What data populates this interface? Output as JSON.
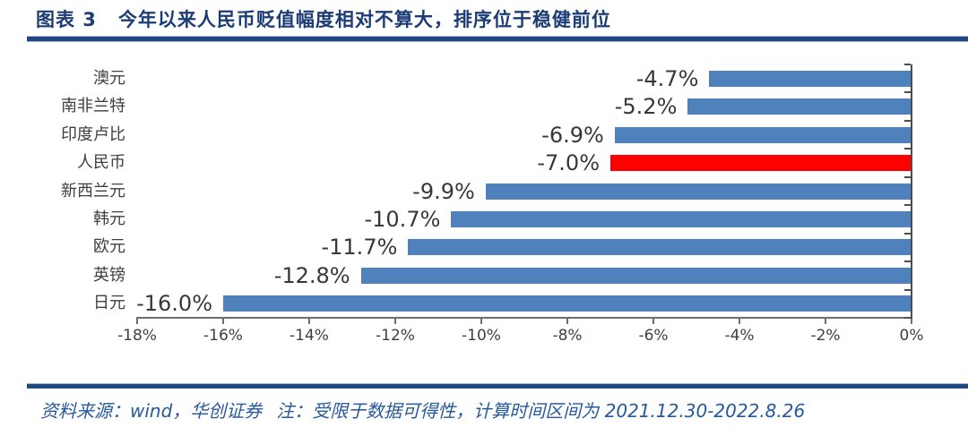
{
  "header": {
    "figure_label": "图表 3",
    "title": "今年以来人民币贬值幅度相对不算大，排序位于稳健前位"
  },
  "chart_data": {
    "type": "bar",
    "orientation": "horizontal",
    "title": "",
    "xlabel": "",
    "ylabel": "",
    "categories": [
      "澳元",
      "南非兰特",
      "印度卢比",
      "人民币",
      "新西兰元",
      "韩元",
      "欧元",
      "英镑",
      "日元"
    ],
    "values": [
      -4.7,
      -5.2,
      -6.9,
      -7.0,
      -9.9,
      -10.7,
      -11.7,
      -12.8,
      -16.0
    ],
    "value_labels": [
      "-4.7%",
      "-5.2%",
      "-6.9%",
      "-7.0%",
      "-9.9%",
      "-10.7%",
      "-11.7%",
      "-12.8%",
      "-16.0%"
    ],
    "highlight_category": "人民币",
    "bar_color": "#4F81BD",
    "highlight_color": "#FF0000",
    "xlim": [
      -18,
      0
    ],
    "x_ticks": [
      "-18%",
      "-16%",
      "-14%",
      "-12%",
      "-10%",
      "-8%",
      "-6%",
      "-4%",
      "-2%",
      "0%"
    ],
    "grid": false,
    "legend": false
  },
  "footer": {
    "source": "资料来源：wind，华创证券",
    "note": "注：受限于数据可得性，计算时间区间为 2021.12.30-2022.8.26"
  },
  "colors": {
    "title_text": "#1B3C74",
    "rule": "#1F4780",
    "footer_text": "#27599A",
    "axis": "#6E6E6E",
    "label_text": "#3F3F3F"
  }
}
